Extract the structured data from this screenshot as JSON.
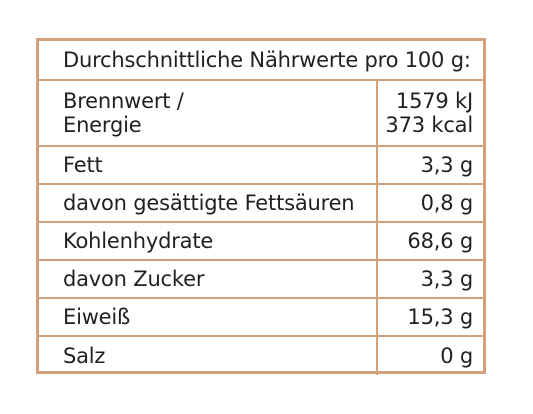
{
  "table": {
    "header": "Durchschnittliche Nährwerte pro 100 g:",
    "energy": {
      "label_line1": "Brennwert /",
      "label_line2": "Energie",
      "value_kj": "1579 kJ",
      "value_kcal": "373 kcal"
    },
    "rows": [
      {
        "label": "Fett",
        "value": "3,3 g"
      },
      {
        "label": "davon gesättigte Fettsäuren",
        "value": "0,8 g"
      },
      {
        "label": "Kohlenhydrate",
        "value": "68,6 g"
      },
      {
        "label": "davon Zucker",
        "value": "3,3 g"
      },
      {
        "label": "Eiweiß",
        "value": "15,3 g"
      },
      {
        "label": "Salz",
        "value": "0 g"
      }
    ]
  },
  "colors": {
    "border": "#d2a07a",
    "text": "#231f20"
  }
}
